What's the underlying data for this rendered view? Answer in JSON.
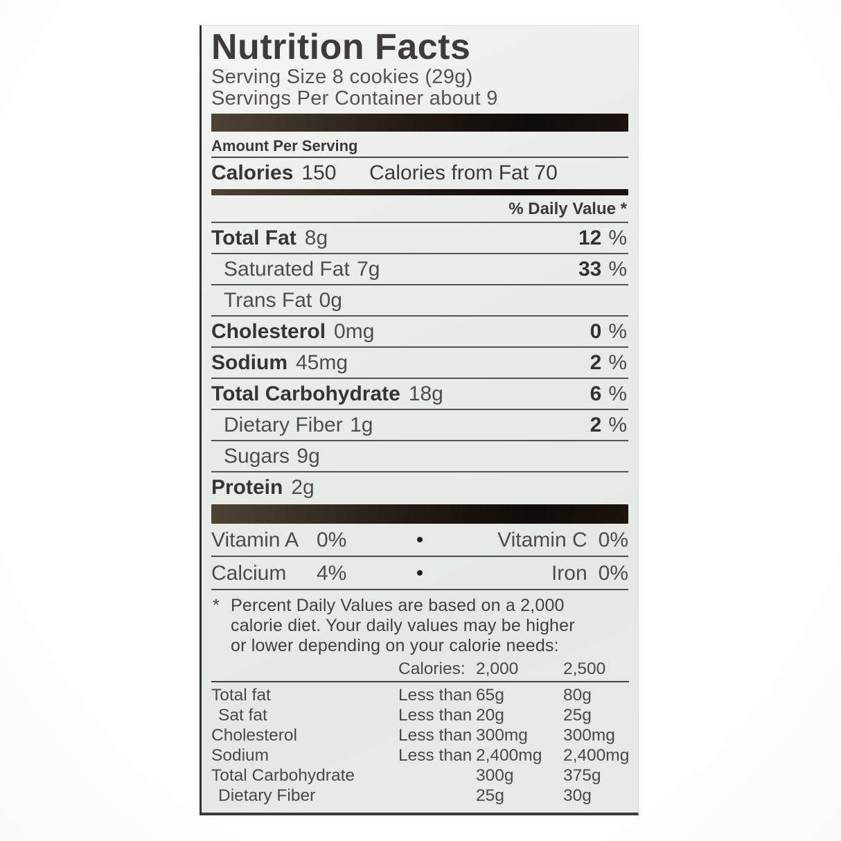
{
  "label": {
    "title": "Nutrition Facts",
    "serving_size": "Serving Size 8 cookies (29g)",
    "servings_per_container": "Servings Per Container about 9",
    "amount_per_serving": "Amount Per Serving",
    "calories_label": "Calories",
    "calories_value": "150",
    "calories_from_fat": "Calories from Fat 70",
    "daily_value_header": "% Daily Value *",
    "bullet": "•",
    "nutrients": [
      {
        "name": "Total Fat",
        "amount": "8g",
        "dv_num": "12",
        "dv_sym": "%"
      },
      {
        "name": "Saturated Fat",
        "amount": "7g",
        "dv_num": "33",
        "dv_sym": "%"
      },
      {
        "name": "Trans Fat",
        "amount": "0g",
        "dv_num": "",
        "dv_sym": ""
      },
      {
        "name": "Cholesterol",
        "amount": "0mg",
        "dv_num": "0",
        "dv_sym": "%"
      },
      {
        "name": "Sodium",
        "amount": "45mg",
        "dv_num": "2",
        "dv_sym": "%"
      },
      {
        "name": "Total Carbohydrate",
        "amount": "18g",
        "dv_num": "6",
        "dv_sym": "%"
      },
      {
        "name": "Dietary Fiber",
        "amount": "1g",
        "dv_num": "2",
        "dv_sym": "%"
      },
      {
        "name": "Sugars",
        "amount": "9g",
        "dv_num": "",
        "dv_sym": ""
      },
      {
        "name": "Protein",
        "amount": "2g",
        "dv_num": "",
        "dv_sym": ""
      }
    ],
    "vitamins": [
      {
        "left_name": "Vitamin A",
        "left_value": "0%",
        "right_name": "Vitamin C",
        "right_value": "0%"
      },
      {
        "left_name": "Calcium",
        "left_value": "4%",
        "right_name": "Iron",
        "right_value": "0%"
      }
    ],
    "footnote": {
      "marker": "*",
      "lines": [
        "Percent Daily Values are based on a 2,000",
        "calorie diet. Your daily values may be higher",
        "or lower depending on your calorie needs:"
      ]
    },
    "footer_table": {
      "header": {
        "label": "Calories:",
        "col_2000": "2,000",
        "col_2500": "2,500"
      },
      "rows": [
        {
          "name": "Total fat",
          "qualifier": "Less than",
          "v2000": "65g",
          "v2500": "80g"
        },
        {
          "name": "Sat fat",
          "qualifier": "Less than",
          "v2000": "20g",
          "v2500": "25g"
        },
        {
          "name": "Cholesterol",
          "qualifier": "Less than",
          "v2000": "300mg",
          "v2500": "300mg"
        },
        {
          "name": "Sodium",
          "qualifier": "Less than",
          "v2000": "2,400mg",
          "v2500": "2,400mg"
        },
        {
          "name": "Total Carbohydrate",
          "qualifier": "",
          "v2000": "300g",
          "v2500": "375g"
        },
        {
          "name": "Dietary Fiber",
          "qualifier": "",
          "v2000": "25g",
          "v2500": "30g"
        }
      ]
    },
    "colors": {
      "label_background": "#e8ece9",
      "divider_bar": "#16110d",
      "text_primary": "#3c3a37",
      "text_secondary": "#54524e",
      "rule": "#4f4d4a",
      "photo_background": "#ffffff"
    }
  }
}
